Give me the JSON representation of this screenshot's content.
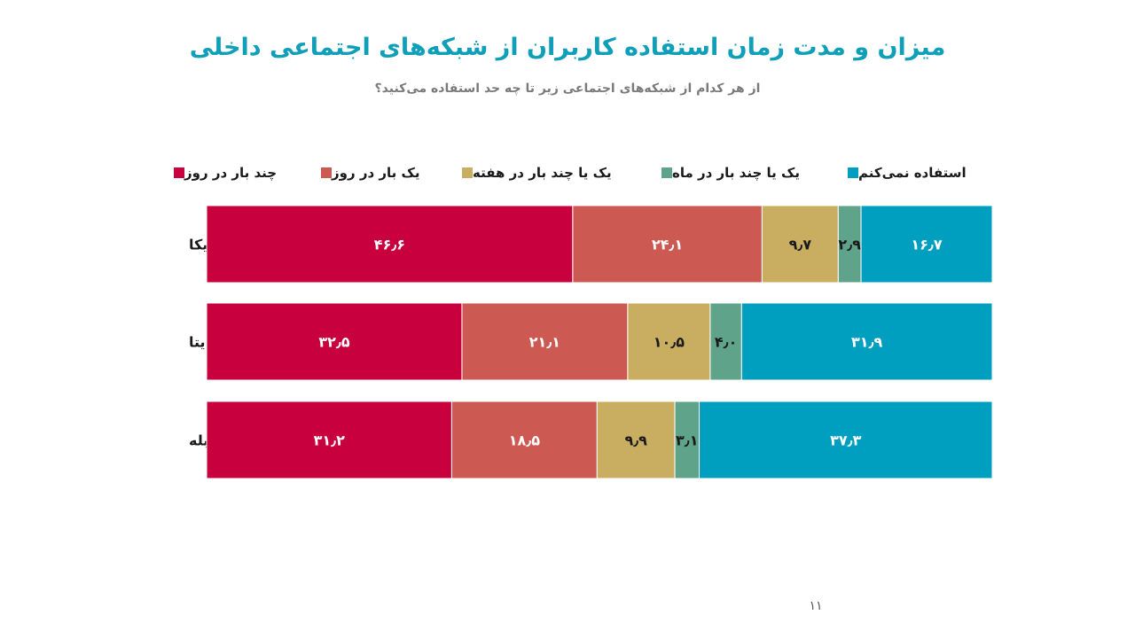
{
  "title": "میزان و مدت زمان استفاده کاربران از شبکه‌های اجتماعی داخلی",
  "subtitle": "از هر کدام از شبکه‌های اجتماعی زیر تا چه حد استفاده می‌کنید؟",
  "page_number": "۱۱",
  "chart_data": {
    "type": "bar",
    "orientation": "horizontal",
    "stacked": "100%",
    "categories": [
      "روبیکا",
      "ایتا",
      "بله"
    ],
    "series": [
      {
        "name": "چند بار در روز",
        "color": "#c8003e",
        "values": [
          46.6,
          32.5,
          31.2
        ],
        "labels": [
          "۴۶٫۶",
          "۳۲٫۵",
          "۳۱٫۲"
        ]
      },
      {
        "name": "یک بار در روز",
        "color": "#cd5a52",
        "values": [
          24.1,
          21.1,
          18.5
        ],
        "labels": [
          "۲۴٫۱",
          "۲۱٫۱",
          "۱۸٫۵"
        ]
      },
      {
        "name": "یک یا چند بار در هفته",
        "color": "#c9ae62",
        "values": [
          9.7,
          10.5,
          9.9
        ],
        "labels": [
          "۹٫۷",
          "۱۰٫۵",
          "۹٫۹"
        ]
      },
      {
        "name": "یک یا چند بار در ماه",
        "color": "#5fa38a",
        "values": [
          2.9,
          4.0,
          3.1
        ],
        "labels": [
          "۲٫۹",
          "۴٫۰",
          "۳٫۱"
        ]
      },
      {
        "name": "استفاده نمی‌کنم",
        "color": "#009fbf",
        "values": [
          16.7,
          31.9,
          37.3
        ],
        "labels": [
          "۱۶٫۷",
          "۳۱٫۹",
          "۳۷٫۳"
        ]
      }
    ],
    "legend_position": "top",
    "grid": false
  }
}
